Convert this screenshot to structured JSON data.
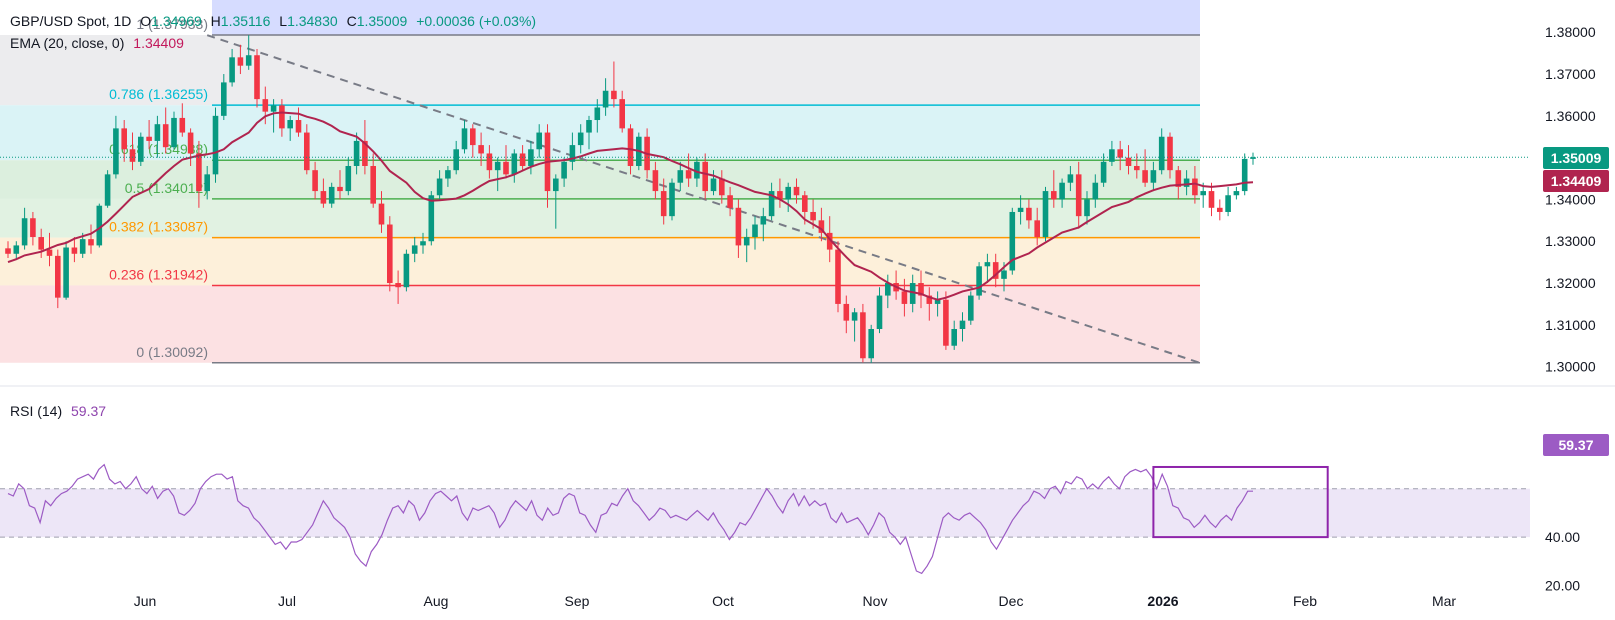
{
  "header": {
    "symbol": "GBP/USD Spot, 1D",
    "open_label": "O",
    "open": "1.34969",
    "high_label": "H",
    "high": "1.35116",
    "low_label": "L",
    "low": "1.34830",
    "close_label": "C",
    "close": "1.35009",
    "change": "+0.00036 (+0.03%)",
    "ema_label": "EMA (20, close, 0)",
    "ema_value": "1.34409",
    "rsi_label": "RSI (14)",
    "rsi_value": "59.37"
  },
  "price_tags": {
    "close": "1.35009",
    "ema": "1.34409",
    "rsi": "59.37"
  },
  "colors": {
    "up": "#089981",
    "down": "#f23645",
    "ema": "#b0244f",
    "rsi": "#9c5bc4",
    "rsi_box": "#8e24aa"
  },
  "chart_data": {
    "type": "candlestick",
    "symbol": "GBP/USD Spot",
    "timeframe": "1D",
    "price_axis": {
      "ticks": [
        1.3,
        1.31,
        1.32,
        1.33,
        1.34,
        1.35,
        1.36,
        1.37,
        1.38
      ],
      "labels": [
        "1.30000",
        "1.31000",
        "1.32000",
        "1.33000",
        "1.34000",
        "1.35000",
        "1.36000",
        "1.37000",
        "1.38000"
      ],
      "range": [
        1.2968,
        1.3858
      ]
    },
    "rsi_axis": {
      "ticks": [
        20,
        40
      ],
      "labels": [
        "20.00",
        "40.00"
      ],
      "range": [
        14,
        100
      ],
      "band": [
        40,
        60
      ]
    },
    "time_axis": {
      "labels": [
        "Jun",
        "Jul",
        "Aug",
        "Sep",
        "Oct",
        "Nov",
        "Dec",
        "2026",
        "Feb",
        "Mar"
      ]
    },
    "fibonacci": [
      {
        "level": "1",
        "value": 1.37933,
        "label": "1 (1.37933)",
        "color": "#787b86",
        "fill": "#e9e9eb"
      },
      {
        "level": "0.786",
        "value": 1.36255,
        "label": "0.786 (1.36255)",
        "color": "#00bcd4",
        "fill": "#d4f1f4"
      },
      {
        "level": "0.618",
        "value": 1.34938,
        "label": "0.618 (1.34938)",
        "color": "#4caf50",
        "fill": "#d6ecd8"
      },
      {
        "level": "0.5",
        "value": 1.34012,
        "label": "0.5 (1.34012)",
        "color": "#4caf50",
        "fill": "#dcf0dd"
      },
      {
        "level": "0.382",
        "value": 1.33087,
        "label": "0.382 (1.33087)",
        "color": "#ff9800",
        "fill": "#fdedd4"
      },
      {
        "level": "0.236",
        "value": 1.31942,
        "label": "0.236 (1.31942)",
        "color": "#f23645",
        "fill": "#fbdcde"
      },
      {
        "level": "0",
        "value": 1.30092,
        "label": "0 (1.30092)",
        "color": "#787b86",
        "fill": "#fbdcde"
      }
    ],
    "trendline": {
      "start": {
        "date": "2025-06-17",
        "value": 1.3793
      },
      "end": {
        "date": "2026-01-05",
        "value": 1.3009
      }
    },
    "candles": [
      [
        1.3283,
        1.33,
        1.326,
        1.327
      ],
      [
        1.327,
        1.33,
        1.3255,
        1.329
      ],
      [
        1.329,
        1.338,
        1.328,
        1.3355
      ],
      [
        1.3355,
        1.337,
        1.329,
        1.331
      ],
      [
        1.331,
        1.333,
        1.326,
        1.328
      ],
      [
        1.328,
        1.332,
        1.324,
        1.3265
      ],
      [
        1.3265,
        1.328,
        1.314,
        1.3165
      ],
      [
        1.3165,
        1.33,
        1.316,
        1.3285
      ],
      [
        1.3285,
        1.331,
        1.325,
        1.327
      ],
      [
        1.327,
        1.332,
        1.326,
        1.3305
      ],
      [
        1.3305,
        1.334,
        1.327,
        1.329
      ],
      [
        1.329,
        1.339,
        1.3285,
        1.3385
      ],
      [
        1.3385,
        1.347,
        1.338,
        1.346
      ],
      [
        1.346,
        1.36,
        1.345,
        1.357
      ],
      [
        1.357,
        1.359,
        1.349,
        1.352
      ],
      [
        1.352,
        1.356,
        1.347,
        1.349
      ],
      [
        1.349,
        1.356,
        1.348,
        1.355
      ],
      [
        1.355,
        1.359,
        1.352,
        1.354
      ],
      [
        1.354,
        1.36,
        1.35,
        1.358
      ],
      [
        1.358,
        1.362,
        1.351,
        1.3525
      ],
      [
        1.3525,
        1.361,
        1.352,
        1.3595
      ],
      [
        1.3595,
        1.363,
        1.355,
        1.356
      ],
      [
        1.356,
        1.357,
        1.348,
        1.351
      ],
      [
        1.351,
        1.354,
        1.338,
        1.342
      ],
      [
        1.342,
        1.348,
        1.34,
        1.346
      ],
      [
        1.346,
        1.362,
        1.344,
        1.36
      ],
      [
        1.36,
        1.37,
        1.359,
        1.368
      ],
      [
        1.368,
        1.376,
        1.367,
        1.374
      ],
      [
        1.374,
        1.377,
        1.37,
        1.372
      ],
      [
        1.372,
        1.3793,
        1.371,
        1.3745
      ],
      [
        1.3745,
        1.376,
        1.362,
        1.364
      ],
      [
        1.364,
        1.367,
        1.358,
        1.361
      ],
      [
        1.361,
        1.364,
        1.356,
        1.3625
      ],
      [
        1.3625,
        1.364,
        1.355,
        1.357
      ],
      [
        1.357,
        1.36,
        1.354,
        1.359
      ],
      [
        1.359,
        1.362,
        1.355,
        1.356
      ],
      [
        1.356,
        1.358,
        1.346,
        1.347
      ],
      [
        1.347,
        1.349,
        1.34,
        1.342
      ],
      [
        1.342,
        1.345,
        1.338,
        1.339
      ],
      [
        1.339,
        1.344,
        1.338,
        1.343
      ],
      [
        1.343,
        1.347,
        1.34,
        1.342
      ],
      [
        1.342,
        1.35,
        1.341,
        1.348
      ],
      [
        1.348,
        1.356,
        1.346,
        1.354
      ],
      [
        1.354,
        1.359,
        1.346,
        1.348
      ],
      [
        1.348,
        1.351,
        1.338,
        1.339
      ],
      [
        1.339,
        1.342,
        1.332,
        1.334
      ],
      [
        1.334,
        1.336,
        1.318,
        1.32
      ],
      [
        1.32,
        1.323,
        1.315,
        1.319
      ],
      [
        1.319,
        1.328,
        1.318,
        1.327
      ],
      [
        1.327,
        1.331,
        1.325,
        1.329
      ],
      [
        1.329,
        1.332,
        1.327,
        1.33
      ],
      [
        1.33,
        1.342,
        1.329,
        1.341
      ],
      [
        1.341,
        1.347,
        1.34,
        1.345
      ],
      [
        1.345,
        1.348,
        1.343,
        1.347
      ],
      [
        1.347,
        1.354,
        1.346,
        1.352
      ],
      [
        1.352,
        1.359,
        1.351,
        1.357
      ],
      [
        1.357,
        1.358,
        1.35,
        1.353
      ],
      [
        1.353,
        1.356,
        1.348,
        1.351
      ],
      [
        1.351,
        1.353,
        1.345,
        1.347
      ],
      [
        1.347,
        1.35,
        1.342,
        1.349
      ],
      [
        1.349,
        1.353,
        1.345,
        1.346
      ],
      [
        1.346,
        1.352,
        1.344,
        1.351
      ],
      [
        1.351,
        1.353,
        1.347,
        1.348
      ],
      [
        1.348,
        1.354,
        1.346,
        1.352
      ],
      [
        1.352,
        1.358,
        1.35,
        1.356
      ],
      [
        1.356,
        1.358,
        1.338,
        1.342
      ],
      [
        1.342,
        1.346,
        1.333,
        1.345
      ],
      [
        1.345,
        1.35,
        1.343,
        1.349
      ],
      [
        1.349,
        1.356,
        1.347,
        1.353
      ],
      [
        1.353,
        1.358,
        1.351,
        1.356
      ],
      [
        1.356,
        1.36,
        1.352,
        1.359
      ],
      [
        1.359,
        1.364,
        1.356,
        1.362
      ],
      [
        1.362,
        1.369,
        1.36,
        1.366
      ],
      [
        1.366,
        1.373,
        1.362,
        1.364
      ],
      [
        1.364,
        1.366,
        1.356,
        1.357
      ],
      [
        1.357,
        1.358,
        1.346,
        1.348
      ],
      [
        1.348,
        1.356,
        1.347,
        1.355
      ],
      [
        1.355,
        1.357,
        1.345,
        1.347
      ],
      [
        1.347,
        1.349,
        1.34,
        1.342
      ],
      [
        1.342,
        1.345,
        1.334,
        1.336
      ],
      [
        1.336,
        1.345,
        1.335,
        1.344
      ],
      [
        1.344,
        1.349,
        1.342,
        1.347
      ],
      [
        1.347,
        1.351,
        1.343,
        1.345
      ],
      [
        1.345,
        1.35,
        1.343,
        1.349
      ],
      [
        1.349,
        1.351,
        1.34,
        1.342
      ],
      [
        1.342,
        1.347,
        1.341,
        1.345
      ],
      [
        1.345,
        1.347,
        1.339,
        1.341
      ],
      [
        1.341,
        1.343,
        1.336,
        1.338
      ],
      [
        1.338,
        1.34,
        1.326,
        1.329
      ],
      [
        1.329,
        1.333,
        1.325,
        1.331
      ],
      [
        1.331,
        1.336,
        1.328,
        1.334
      ],
      [
        1.334,
        1.338,
        1.33,
        1.336
      ],
      [
        1.336,
        1.344,
        1.335,
        1.342
      ],
      [
        1.342,
        1.345,
        1.338,
        1.34
      ],
      [
        1.34,
        1.344,
        1.337,
        1.343
      ],
      [
        1.343,
        1.345,
        1.339,
        1.341
      ],
      [
        1.341,
        1.342,
        1.334,
        1.337
      ],
      [
        1.337,
        1.34,
        1.333,
        1.335
      ],
      [
        1.335,
        1.338,
        1.33,
        1.332
      ],
      [
        1.332,
        1.336,
        1.325,
        1.328
      ],
      [
        1.328,
        1.33,
        1.313,
        1.315
      ],
      [
        1.315,
        1.317,
        1.308,
        1.311
      ],
      [
        1.311,
        1.314,
        1.306,
        1.313
      ],
      [
        1.313,
        1.315,
        1.301,
        1.302
      ],
      [
        1.302,
        1.31,
        1.3009,
        1.309
      ],
      [
        1.309,
        1.319,
        1.308,
        1.317
      ],
      [
        1.317,
        1.322,
        1.314,
        1.32
      ],
      [
        1.32,
        1.323,
        1.316,
        1.318
      ],
      [
        1.318,
        1.321,
        1.312,
        1.315
      ],
      [
        1.315,
        1.322,
        1.313,
        1.32
      ],
      [
        1.32,
        1.323,
        1.314,
        1.317
      ],
      [
        1.317,
        1.319,
        1.311,
        1.315
      ],
      [
        1.315,
        1.318,
        1.312,
        1.316
      ],
      [
        1.316,
        1.318,
        1.304,
        1.305
      ],
      [
        1.305,
        1.311,
        1.304,
        1.309
      ],
      [
        1.309,
        1.313,
        1.306,
        1.311
      ],
      [
        1.311,
        1.318,
        1.31,
        1.317
      ],
      [
        1.317,
        1.325,
        1.316,
        1.324
      ],
      [
        1.324,
        1.327,
        1.32,
        1.325
      ],
      [
        1.325,
        1.327,
        1.319,
        1.321
      ],
      [
        1.321,
        1.325,
        1.318,
        1.323
      ],
      [
        1.323,
        1.338,
        1.322,
        1.337
      ],
      [
        1.337,
        1.341,
        1.334,
        1.338
      ],
      [
        1.338,
        1.34,
        1.333,
        1.335
      ],
      [
        1.335,
        1.338,
        1.329,
        1.331
      ],
      [
        1.331,
        1.343,
        1.33,
        1.342
      ],
      [
        1.342,
        1.347,
        1.338,
        1.34
      ],
      [
        1.34,
        1.345,
        1.338,
        1.344
      ],
      [
        1.344,
        1.348,
        1.342,
        1.346
      ],
      [
        1.346,
        1.349,
        1.333,
        1.336
      ],
      [
        1.336,
        1.342,
        1.334,
        1.34
      ],
      [
        1.34,
        1.346,
        1.338,
        1.344
      ],
      [
        1.344,
        1.351,
        1.343,
        1.349
      ],
      [
        1.349,
        1.354,
        1.348,
        1.352
      ],
      [
        1.352,
        1.354,
        1.347,
        1.35
      ],
      [
        1.35,
        1.353,
        1.346,
        1.348
      ],
      [
        1.348,
        1.351,
        1.345,
        1.347
      ],
      [
        1.347,
        1.352,
        1.343,
        1.344
      ],
      [
        1.344,
        1.349,
        1.342,
        1.347
      ],
      [
        1.347,
        1.357,
        1.346,
        1.355
      ],
      [
        1.355,
        1.356,
        1.345,
        1.347
      ],
      [
        1.347,
        1.348,
        1.34,
        1.343
      ],
      [
        1.343,
        1.347,
        1.341,
        1.345
      ],
      [
        1.345,
        1.348,
        1.339,
        1.341
      ],
      [
        1.341,
        1.344,
        1.338,
        1.342
      ],
      [
        1.342,
        1.344,
        1.336,
        1.338
      ],
      [
        1.338,
        1.34,
        1.335,
        1.337
      ],
      [
        1.337,
        1.343,
        1.336,
        1.341
      ],
      [
        1.341,
        1.343,
        1.34,
        1.342
      ],
      [
        1.342,
        1.351,
        1.341,
        1.3497
      ],
      [
        1.3497,
        1.3512,
        1.3483,
        1.3501
      ]
    ],
    "ema20": [
      1.325,
      1.3257,
      1.3266,
      1.3275,
      1.3283,
      1.3291,
      1.3296,
      1.3306,
      1.3318,
      1.3331,
      1.3347,
      1.3366,
      1.3386,
      1.3406,
      1.3425,
      1.3444,
      1.3463,
      1.348,
      1.3495,
      1.3505,
      1.3508,
      1.3512,
      1.352,
      1.3537,
      1.356,
      1.3583,
      1.3599,
      1.3606,
      1.3608,
      1.3605,
      1.3598,
      1.3593,
      1.3586,
      1.3576,
      1.3563,
      1.355,
      1.3534,
      1.3515,
      1.3493,
      1.3468,
      1.344,
      1.3418,
      1.3403,
      1.3397,
      1.3398,
      1.3402,
      1.341,
      1.3421,
      1.3433,
      1.3444,
      1.3453,
      1.346,
      1.3469,
      1.3478,
      1.3485,
      1.349,
      1.3494,
      1.3498,
      1.3503,
      1.351,
      1.3516,
      1.352,
      1.3522,
      1.352,
      1.3516,
      1.3509,
      1.3501,
      1.3492,
      1.3484,
      1.3475,
      1.3466,
      1.3457,
      1.3449,
      1.3441,
      1.3434,
      1.3426,
      1.3418,
      1.341,
      1.34,
      1.3388,
      1.3372,
      1.3352,
      1.3329,
      1.3305,
      1.3283,
      1.3262,
      1.3243,
      1.3227,
      1.3213,
      1.3201,
      1.3191,
      1.3182,
      1.3174,
      1.3166,
      1.316,
      1.3165,
      1.3172,
      1.318,
      1.3189,
      1.3203,
      1.322,
      1.3238,
      1.3255,
      1.3271,
      1.3285,
      1.3297,
      1.3309,
      1.3321,
      1.3333,
      1.3346,
      1.3358,
      1.337,
      1.3382,
      1.3394,
      1.3405,
      1.3414,
      1.3422,
      1.3428,
      1.3433,
      1.3436,
      1.3438,
      1.3432,
      1.343,
      1.3432,
      1.3436,
      1.344,
      1.3441
    ],
    "rsi14": [
      58,
      57,
      62,
      60,
      53,
      52,
      46,
      55,
      53,
      56,
      58,
      59,
      61,
      64,
      65,
      66,
      64,
      68,
      70,
      64,
      62,
      63,
      60,
      62,
      65,
      60,
      58,
      61,
      56,
      59,
      60,
      57,
      50,
      49,
      51,
      54,
      60,
      63,
      65,
      66,
      66,
      64,
      65,
      55,
      53,
      52,
      48,
      46,
      43,
      40,
      37,
      38,
      35,
      38,
      38,
      39,
      42,
      45,
      50,
      55,
      52,
      48,
      46,
      44,
      40,
      33,
      30,
      28,
      34,
      37,
      41,
      47,
      52,
      53,
      50,
      55,
      53,
      47,
      50,
      55,
      58,
      59,
      57,
      55,
      57,
      50,
      47,
      52,
      51,
      52,
      53,
      50,
      44,
      47,
      52,
      55,
      53,
      51,
      55,
      49,
      47,
      52,
      49,
      50,
      56,
      58,
      57,
      50,
      49,
      45,
      42,
      49,
      50,
      54,
      53,
      57,
      60,
      55,
      53,
      50,
      47,
      49,
      52,
      51,
      48,
      49,
      48,
      47,
      49,
      51,
      49,
      47,
      50,
      46,
      43,
      39,
      42,
      46,
      45,
      48,
      52,
      56,
      60,
      57,
      53,
      50,
      55,
      58,
      53,
      57,
      53,
      55,
      53,
      54,
      48,
      46,
      50,
      46,
      47,
      48,
      45,
      41,
      45,
      50,
      48,
      42,
      40,
      37,
      40,
      33,
      26,
      25,
      28,
      32,
      40,
      48,
      50,
      48,
      47,
      49,
      50,
      48,
      46,
      43,
      38,
      35,
      39,
      43,
      47,
      50,
      53,
      55,
      59,
      58,
      56,
      60,
      61,
      58,
      63,
      62,
      65,
      64,
      60,
      62,
      60,
      63,
      65,
      62,
      60,
      65,
      67,
      68,
      67,
      68,
      65,
      60,
      66,
      61,
      53,
      52,
      48,
      47,
      44,
      46,
      49,
      46,
      44,
      47,
      49,
      47,
      52,
      55,
      59,
      59
    ]
  },
  "rsi_box": {
    "start_bar": 138,
    "end_bar": 159
  }
}
